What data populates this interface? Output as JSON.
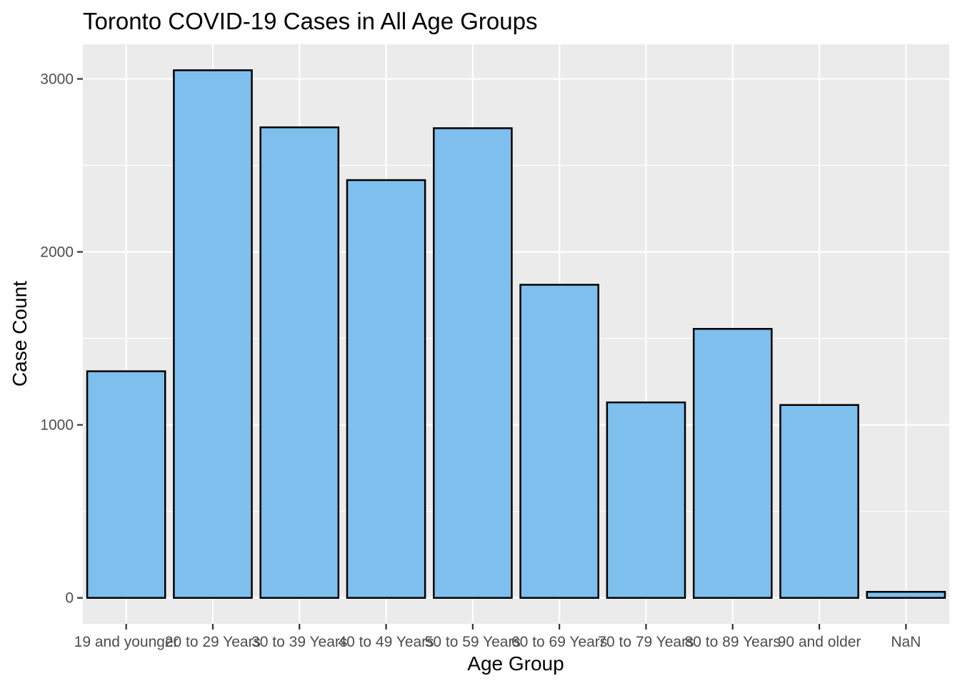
{
  "chart_data": {
    "type": "bar",
    "title": "Toronto COVID-19 Cases in All Age Groups",
    "xlabel": "Age Group",
    "ylabel": "Case Count",
    "categories": [
      "19 and younger",
      "20 to 29 Years",
      "30 to 39 Years",
      "40 to 49 Years",
      "50 to 59 Years",
      "60 to 69 Years",
      "70 to 79 Years",
      "80 to 89 Years",
      "90 and older",
      "NaN"
    ],
    "values": [
      1310,
      3050,
      2720,
      2415,
      2715,
      1810,
      1130,
      1555,
      1115,
      35
    ],
    "ylim": [
      -150,
      3200
    ],
    "yticks": [
      0,
      1000,
      2000,
      3000
    ],
    "grid": true,
    "legend": "none",
    "colors": {
      "bar_fill": "#7fbfed",
      "bar_stroke": "#000000",
      "panel": "#ebebeb",
      "grid": "#ffffff"
    }
  }
}
